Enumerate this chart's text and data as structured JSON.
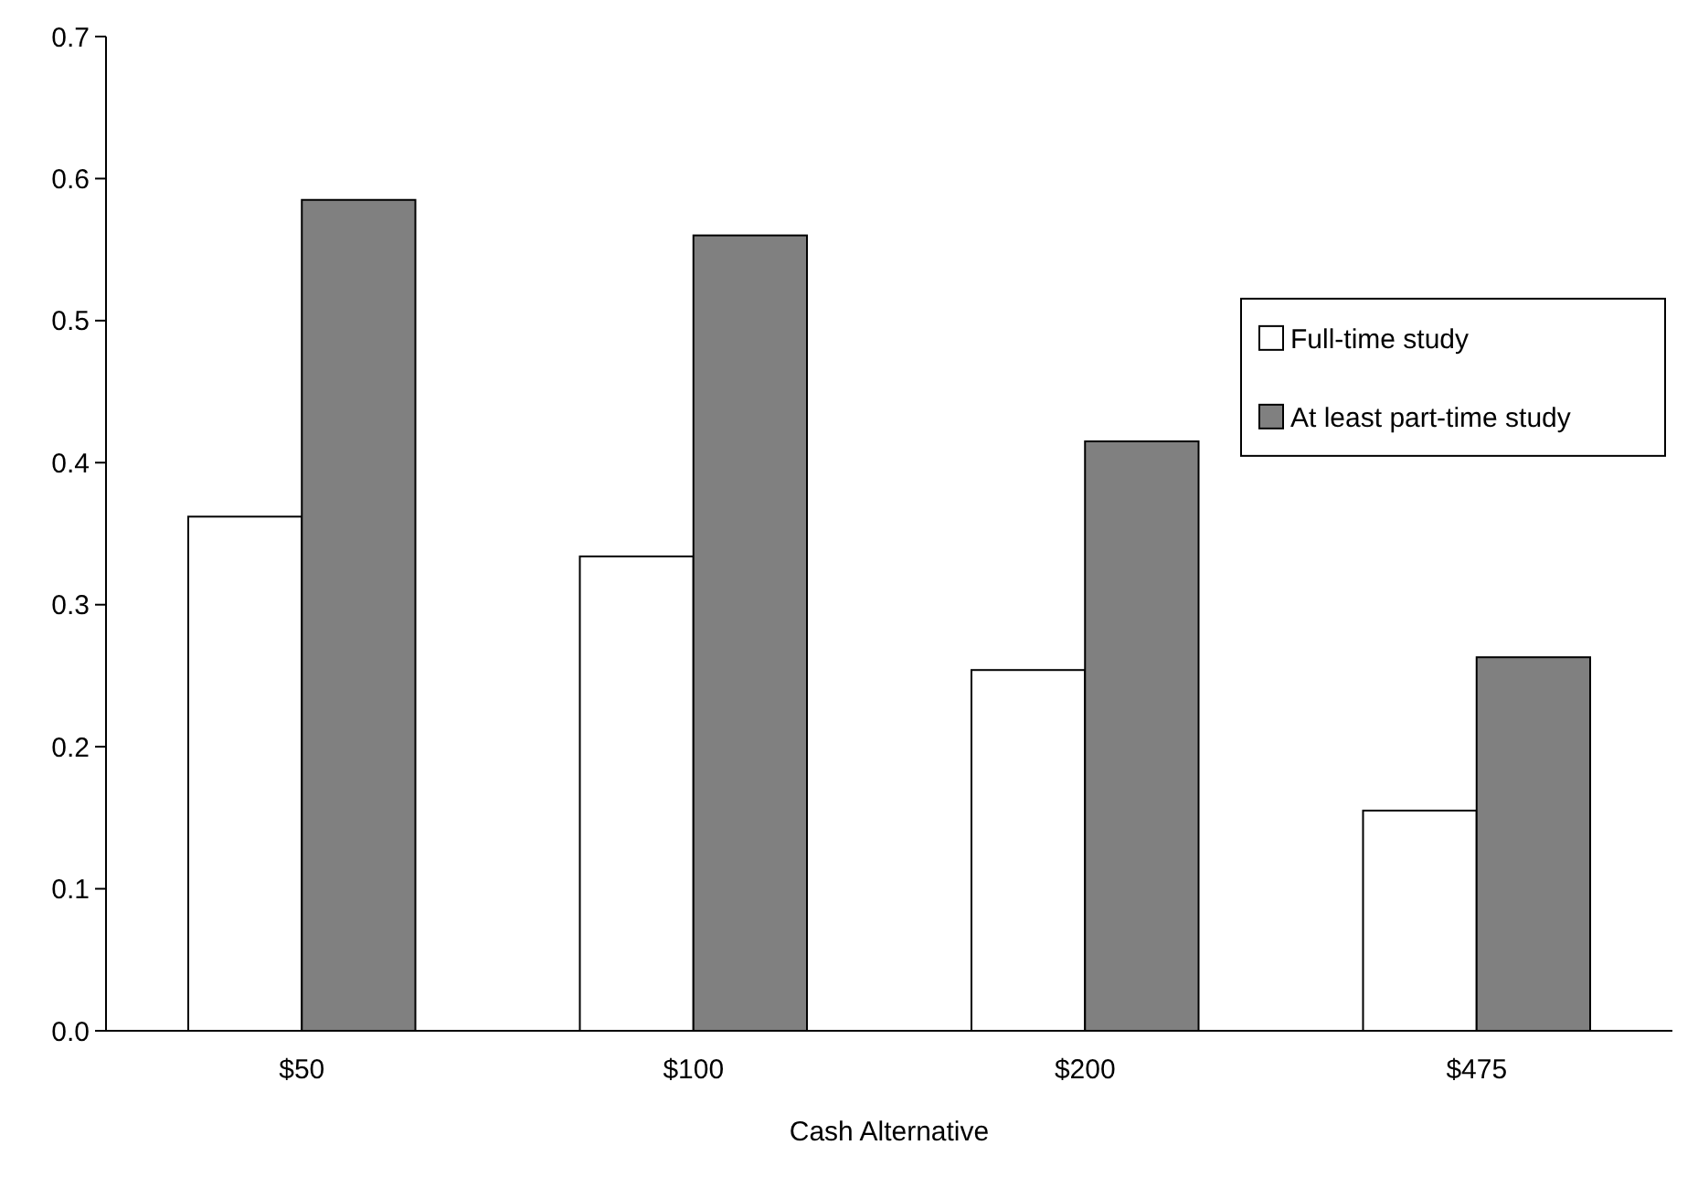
{
  "chart_data": {
    "type": "bar",
    "xlabel": "Cash Alternative",
    "categories": [
      "$50",
      "$100",
      "$200",
      "$475"
    ],
    "series": [
      {
        "name": "Full-time study",
        "color": "#ffffff",
        "values": [
          0.362,
          0.334,
          0.254,
          0.155
        ]
      },
      {
        "name": "At least part-time study",
        "color": "#808080",
        "values": [
          0.585,
          0.56,
          0.415,
          0.263
        ]
      }
    ],
    "ylim": [
      0,
      0.7
    ],
    "yticks": [
      {
        "value": 0,
        "label": "0.0"
      },
      {
        "value": 0.1,
        "label": "0.1"
      },
      {
        "value": 0.2,
        "label": "0.2"
      },
      {
        "value": 0.3,
        "label": "0.3"
      },
      {
        "value": 0.4,
        "label": "0.4"
      },
      {
        "value": 0.5,
        "label": "0.5"
      },
      {
        "value": 0.6,
        "label": "0.6"
      },
      {
        "value": 0.7,
        "label": "0.7"
      }
    ],
    "grid": false,
    "legend": "right"
  }
}
